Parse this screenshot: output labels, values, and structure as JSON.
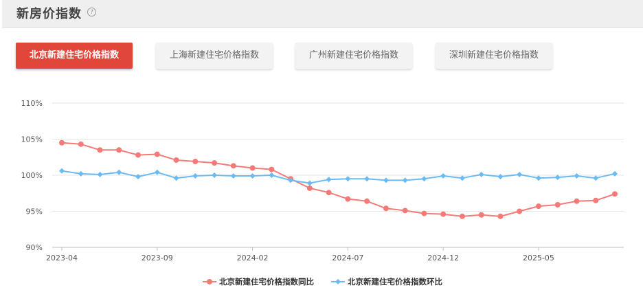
{
  "header": {
    "title": "新房价指数",
    "help_icon": "?"
  },
  "tabs": [
    {
      "label": "北京新建住宅价格指数",
      "active": true
    },
    {
      "label": "上海新建住宅价格指数",
      "active": false
    },
    {
      "label": "广州新建住宅价格指数",
      "active": false
    },
    {
      "label": "深圳新建住宅价格指数",
      "active": false
    }
  ],
  "colors": {
    "accent": "#e0463a",
    "yoy": "#f47a77",
    "mom": "#6bbbf2",
    "grid": "#e6e6e6"
  },
  "chart_data": {
    "type": "line",
    "title": "",
    "xlabel": "",
    "ylabel": "",
    "ylim": [
      90,
      110
    ],
    "yticks": [
      "90%",
      "95%",
      "100%",
      "105%",
      "110%"
    ],
    "x": [
      "2023-04",
      "2023-05",
      "2023-06",
      "2023-07",
      "2023-08",
      "2023-09",
      "2023-10",
      "2023-11",
      "2023-12",
      "2024-01",
      "2024-02",
      "2024-03",
      "2024-04",
      "2024-05",
      "2024-06",
      "2024-07",
      "2024-08",
      "2024-09",
      "2024-10",
      "2024-11",
      "2024-12",
      "2025-01",
      "2025-02",
      "2025-03",
      "2025-04",
      "2025-05",
      "2025-06",
      "2025-07",
      "2025-08",
      "2025-09"
    ],
    "xticks": [
      "2023-04",
      "2023-09",
      "2024-02",
      "2024-07",
      "2024-12",
      "2025-05"
    ],
    "grid": true,
    "legend_position": "bottom",
    "series": [
      {
        "name": "北京新建住宅价格指数同比",
        "color": "#f47a77",
        "marker": "circle",
        "values": [
          104.5,
          104.3,
          103.5,
          103.5,
          102.8,
          102.9,
          102.1,
          101.9,
          101.7,
          101.3,
          101.0,
          100.8,
          99.5,
          98.2,
          97.6,
          96.7,
          96.4,
          95.4,
          95.1,
          94.7,
          94.6,
          94.3,
          94.5,
          94.3,
          95.0,
          95.7,
          95.9,
          96.4,
          96.5,
          97.4
        ]
      },
      {
        "name": "北京新建住宅价格指数环比",
        "color": "#6bbbf2",
        "marker": "diamond",
        "values": [
          100.6,
          100.2,
          100.1,
          100.4,
          99.8,
          100.4,
          99.6,
          99.9,
          100.0,
          99.9,
          99.9,
          100.0,
          99.3,
          98.9,
          99.4,
          99.5,
          99.5,
          99.3,
          99.3,
          99.5,
          99.9,
          99.6,
          100.1,
          99.8,
          100.1,
          99.6,
          99.7,
          99.9,
          99.6,
          100.2
        ]
      }
    ]
  }
}
